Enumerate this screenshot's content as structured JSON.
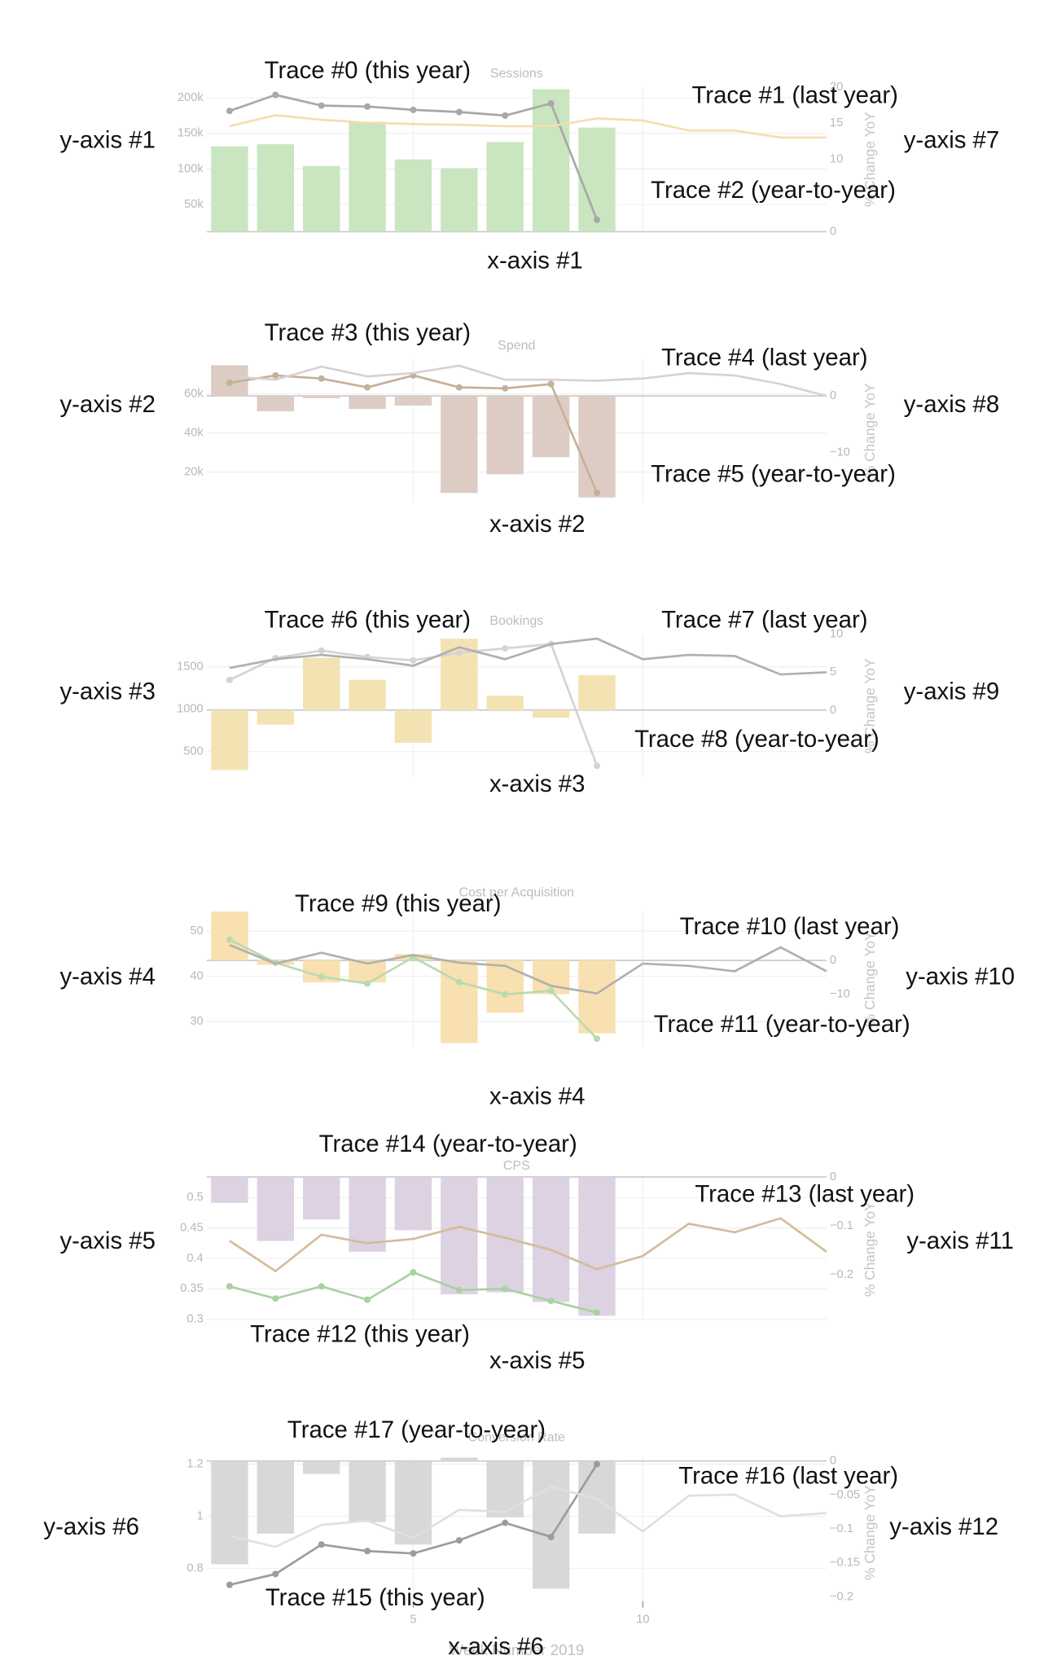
{
  "chart_data": [
    {
      "type": "bar_line",
      "title": "Sessions",
      "y2_label": "% Change YoY",
      "x": [
        1,
        2,
        3,
        4,
        5,
        6,
        7,
        8,
        9,
        10,
        11,
        12,
        13,
        14
      ],
      "xlim": [
        0.5,
        14
      ],
      "xticks": [
        5,
        10
      ],
      "xtick_labels": false,
      "grid": true,
      "ylim": [
        11800,
        215000
      ],
      "yticks": [
        {
          "value": 50000,
          "label": "50k"
        },
        {
          "value": 100000,
          "label": "100k"
        },
        {
          "value": 150000,
          "label": "150k"
        },
        {
          "value": 200000,
          "label": "200k"
        }
      ],
      "y2lim": [
        0,
        20
      ],
      "y2ticks": [
        0,
        10,
        15,
        20
      ],
      "series": [
        {
          "type": "bar",
          "axis": "y2",
          "color": "#c9e6c1",
          "values": [
            11.8,
            12.1,
            9.1,
            15.2,
            10,
            8.8,
            12.4,
            19.7,
            14.4,
            null,
            null,
            null,
            null,
            null
          ]
        },
        {
          "type": "line",
          "color": "#a8a8a8",
          "markers": true,
          "values": [
            181500,
            204000,
            189000,
            187600,
            183000,
            180000,
            175000,
            192000,
            28600,
            null,
            null,
            null,
            null,
            null
          ]
        },
        {
          "type": "line",
          "color": "#f6ddb0",
          "markers": false,
          "values": [
            160000,
            175500,
            169000,
            165000,
            163000,
            162000,
            160000,
            160000,
            171000,
            168000,
            154000,
            154000,
            144000,
            144000
          ]
        }
      ],
      "annotations": [
        "Trace #0 (this year)",
        "Trace #1 (last year)",
        "Trace #2 (year-to-year)",
        "y-axis #1",
        "y-axis #7",
        "x-axis #1"
      ]
    },
    {
      "type": "bar_line",
      "title": "Spend",
      "y2_label": "% Change YoY",
      "x": [
        1,
        2,
        3,
        4,
        5,
        6,
        7,
        8,
        9,
        10,
        11,
        12,
        13,
        14
      ],
      "xlim": [
        0.5,
        14
      ],
      "xticks": [
        5,
        10
      ],
      "xtick_labels": false,
      "grid": true,
      "ylim": [
        4400,
        77800
      ],
      "yticks": [
        {
          "value": 20000,
          "label": "20k"
        },
        {
          "value": 40000,
          "label": "40k"
        },
        {
          "value": 60000,
          "label": "60k"
        }
      ],
      "y2lim": [
        -18.8,
        6.5
      ],
      "y2ticks": [
        {
          "value": -10,
          "label": "−10"
        },
        0
      ],
      "series": [
        {
          "type": "bar",
          "axis": "y2",
          "color": "#dcccc4",
          "values": [
            5.4,
            -2.7,
            -0.4,
            -2.3,
            -1.7,
            -17.1,
            -13.8,
            -10.8,
            -17.9,
            null,
            null,
            null,
            null,
            null
          ]
        },
        {
          "type": "line",
          "color": "#c6b097",
          "markers": true,
          "values": [
            65600,
            69400,
            67800,
            63300,
            69400,
            63300,
            62800,
            65000,
            9400,
            null,
            null,
            null,
            null,
            null
          ]
        },
        {
          "type": "line",
          "color": "#d8d0d8",
          "markers": false,
          "values": [
            68900,
            67200,
            73900,
            68900,
            70600,
            74400,
            67200,
            67200,
            66700,
            67800,
            70600,
            69400,
            65000,
            58900
          ]
        }
      ],
      "annotations": [
        "Trace #3 (this year)",
        "Trace #4 (last year)",
        "Trace #5 (year-to-year)",
        "y-axis #2",
        "y-axis #8",
        "x-axis #2"
      ]
    },
    {
      "type": "bar_line",
      "title": "Bookings",
      "y2_label": "% Change YoY",
      "x": [
        1,
        2,
        3,
        4,
        5,
        6,
        7,
        8,
        9,
        10,
        11,
        12,
        13,
        14
      ],
      "xlim": [
        0.5,
        14
      ],
      "xticks": [
        5,
        10
      ],
      "xtick_labels": false,
      "grid": true,
      "ylim": [
        192,
        1885
      ],
      "yticks": [
        500,
        1000,
        1500
      ],
      "y2lim": [
        -8.9,
        10
      ],
      "y2ticks": [
        0,
        5,
        10
      ],
      "series": [
        {
          "type": "bar",
          "axis": "y2",
          "color": "#f3e3b3",
          "values": [
            -7.9,
            -1.9,
            6.9,
            4,
            -4.3,
            9.4,
            1.9,
            -1,
            4.6,
            null,
            null,
            null,
            null,
            null
          ]
        },
        {
          "type": "line",
          "color": "#d4d4d4",
          "markers": true,
          "values": [
            1346,
            1603,
            1692,
            1615,
            1577,
            1667,
            1718,
            1769,
            333,
            null,
            null,
            null,
            null,
            null
          ]
        },
        {
          "type": "line",
          "color": "#b0b0b0",
          "markers": false,
          "values": [
            1487,
            1590,
            1641,
            1590,
            1513,
            1731,
            1590,
            1769,
            1833,
            1590,
            1641,
            1628,
            1410,
            1436
          ]
        }
      ],
      "annotations": [
        "Trace #6 (this year)",
        "Trace #7 (last year)",
        "Trace #8 (year-to-year)",
        "y-axis #3",
        "y-axis #9",
        "x-axis #3"
      ]
    },
    {
      "type": "bar_line",
      "title": "Cost per Acquisition",
      "y2_label": "% Change YoY",
      "x": [
        1,
        2,
        3,
        4,
        5,
        6,
        7,
        8,
        9,
        10,
        11,
        12,
        13,
        14
      ],
      "xlim": [
        0.5,
        14
      ],
      "xticks": [
        5,
        10
      ],
      "xtick_labels": false,
      "grid": true,
      "ylim": [
        24.5,
        54.3
      ],
      "yticks": [
        30,
        40,
        50
      ],
      "y2lim": [
        -25.5,
        14.5
      ],
      "y2ticks": [
        {
          "value": -10,
          "label": "−10"
        },
        0
      ],
      "series": [
        {
          "type": "bar",
          "axis": "y2",
          "color": "#f8e0b0",
          "values": [
            14.5,
            -1.3,
            -6.5,
            -6.5,
            1.9,
            -24.5,
            -15.5,
            -10,
            -21.6,
            null,
            null,
            null,
            null,
            null
          ]
        },
        {
          "type": "line",
          "color": "#b9dab1",
          "markers": true,
          "values": [
            48.1,
            43,
            39.9,
            38.4,
            44.2,
            38.7,
            36,
            36.8,
            26.2,
            null,
            null,
            null,
            null,
            null
          ]
        },
        {
          "type": "line",
          "color": "#b0b0b0",
          "markers": false,
          "values": [
            46.9,
            42.8,
            45.2,
            42.8,
            44.7,
            43,
            42.3,
            37.9,
            36.2,
            42.8,
            42.3,
            41.1,
            46.4,
            41.1
          ]
        }
      ],
      "annotations": [
        "Trace #9 (this year)",
        "Trace #10 (last year)",
        "Trace #11 (year-to-year)",
        "y-axis #4",
        "y-axis #10",
        "x-axis #4"
      ]
    },
    {
      "type": "bar_line",
      "title": "CPS",
      "y2_label": "% Change YoY",
      "x": [
        1,
        2,
        3,
        4,
        5,
        6,
        7,
        8,
        9,
        10,
        11,
        12,
        13,
        14
      ],
      "xlim": [
        0.5,
        14
      ],
      "xticks": [
        5,
        10
      ],
      "xtick_labels": false,
      "grid": true,
      "ylim": [
        0.296,
        0.534
      ],
      "yticks": [
        0.3,
        0.35,
        0.4,
        0.45,
        0.5
      ],
      "y2lim": [
        -0.296,
        0
      ],
      "y2ticks": [
        {
          "value": -0.2,
          "label": "−0.2"
        },
        {
          "value": -0.1,
          "label": "−0.1"
        },
        0
      ],
      "series": [
        {
          "type": "bar",
          "axis": "y2",
          "color": "#ddd2e2",
          "values": [
            -0.053,
            -0.131,
            -0.087,
            -0.153,
            -0.109,
            -0.24,
            -0.236,
            -0.256,
            -0.284,
            null,
            null,
            null,
            null,
            null
          ]
        },
        {
          "type": "line",
          "color": "#a9d1a1",
          "markers": true,
          "values": [
            0.354,
            0.334,
            0.354,
            0.332,
            0.377,
            0.348,
            0.35,
            0.33,
            0.311,
            null,
            null,
            null,
            null,
            null
          ]
        },
        {
          "type": "line",
          "color": "#d3bc9c",
          "markers": false,
          "values": [
            0.429,
            0.379,
            0.439,
            0.425,
            0.432,
            0.452,
            0.434,
            0.414,
            0.382,
            0.404,
            0.457,
            0.443,
            0.466,
            0.411
          ]
        }
      ],
      "annotations": [
        "Trace #14 (year-to-year)",
        "Trace #13 (last year)",
        "Trace #12 (this year)",
        "y-axis #5",
        "y-axis #11",
        "x-axis #5"
      ]
    },
    {
      "type": "bar_line",
      "title": "Conversion Rate",
      "y2_label": "% Change YoY",
      "x_label": "Week Number 2019",
      "x": [
        1,
        2,
        3,
        4,
        5,
        6,
        7,
        8,
        9,
        10,
        11,
        12,
        13,
        14
      ],
      "xlim": [
        0.5,
        14
      ],
      "xticks": [
        5,
        10
      ],
      "xtick_labels": true,
      "grid": true,
      "ylim": [
        0.65,
        1.225
      ],
      "yticks": [
        0.8,
        1,
        1.2
      ],
      "y2lim": [
        -0.216,
        0.005
      ],
      "y2ticks": [
        {
          "value": -0.2,
          "label": "−0.2"
        },
        {
          "value": -0.15,
          "label": "−0.15"
        },
        {
          "value": -0.1,
          "label": "−0.1"
        },
        {
          "value": -0.05,
          "label": "−0.05"
        },
        0
      ],
      "series": [
        {
          "type": "bar",
          "axis": "y2",
          "color": "#d8d8d8",
          "values": [
            -0.152,
            -0.107,
            -0.019,
            -0.09,
            -0.123,
            0.005,
            -0.083,
            -0.188,
            -0.107,
            null,
            null,
            null,
            null,
            null
          ]
        },
        {
          "type": "line",
          "color": "#9c9c9c",
          "markers": true,
          "values": [
            0.7375,
            0.779,
            0.892,
            0.867,
            0.858,
            0.908,
            0.975,
            0.921,
            1.2,
            null,
            null,
            null,
            null,
            null
          ]
        },
        {
          "type": "line",
          "color": "#e0e0e0",
          "markers": false,
          "values": [
            0.925,
            0.883,
            0.967,
            0.983,
            0.917,
            1.025,
            1.017,
            1.113,
            1.067,
            0.942,
            1.079,
            1.083,
            1,
            1.0125
          ]
        }
      ],
      "annotations": [
        "Trace #17 (year-to-year)",
        "Trace #16 (last year)",
        "Trace #15 (this year)",
        "y-axis #6",
        "y-axis #12",
        "x-axis #6"
      ]
    }
  ]
}
